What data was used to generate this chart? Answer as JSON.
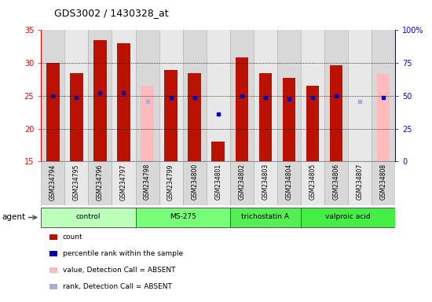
{
  "title": "GDS3002 / 1430328_at",
  "samples": [
    "GSM234794",
    "GSM234795",
    "GSM234796",
    "GSM234797",
    "GSM234798",
    "GSM234799",
    "GSM234800",
    "GSM234801",
    "GSM234802",
    "GSM234803",
    "GSM234804",
    "GSM234805",
    "GSM234806",
    "GSM234807",
    "GSM234808"
  ],
  "count_values": [
    30.0,
    28.5,
    33.5,
    33.0,
    null,
    29.0,
    28.5,
    18.0,
    30.8,
    28.5,
    27.8,
    26.5,
    29.7,
    null,
    null
  ],
  "count_absent_values": [
    null,
    null,
    null,
    null,
    26.5,
    null,
    null,
    null,
    null,
    null,
    null,
    null,
    null,
    null,
    28.3
  ],
  "rank_values": [
    25.0,
    24.8,
    25.5,
    25.5,
    null,
    24.8,
    24.8,
    22.2,
    25.0,
    24.8,
    24.5,
    24.8,
    25.0,
    null,
    24.8
  ],
  "rank_absent_values": [
    null,
    null,
    null,
    null,
    24.2,
    null,
    null,
    null,
    null,
    null,
    null,
    null,
    null,
    24.2,
    null
  ],
  "agent_groups": [
    {
      "label": "control",
      "start": 0,
      "end": 3,
      "color": "#bbffbb"
    },
    {
      "label": "MS-275",
      "start": 4,
      "end": 7,
      "color": "#77ff77"
    },
    {
      "label": "trichostatin A",
      "start": 8,
      "end": 10,
      "color": "#55ee55"
    },
    {
      "label": "valproic acid",
      "start": 11,
      "end": 14,
      "color": "#44ee44"
    }
  ],
  "ylim_left": [
    15,
    35
  ],
  "ylim_right": [
    0,
    100
  ],
  "yticks_left": [
    15,
    20,
    25,
    30,
    35
  ],
  "yticks_right": [
    0,
    25,
    50,
    75,
    100
  ],
  "bar_color_present": "#bb1100",
  "bar_color_absent": "#ffbbbb",
  "rank_color_present": "#0000bb",
  "rank_color_absent": "#aaaadd",
  "rank_markersize": 3.5,
  "bar_width": 0.55,
  "col_bg_even": "#d8d8d8",
  "col_bg_odd": "#e8e8e8",
  "agent_label": "agent",
  "legend_items": [
    {
      "label": "count",
      "color": "#bb1100"
    },
    {
      "label": "percentile rank within the sample",
      "color": "#0000bb"
    },
    {
      "label": "value, Detection Call = ABSENT",
      "color": "#ffbbbb"
    },
    {
      "label": "rank, Detection Call = ABSENT",
      "color": "#aaaadd"
    }
  ]
}
